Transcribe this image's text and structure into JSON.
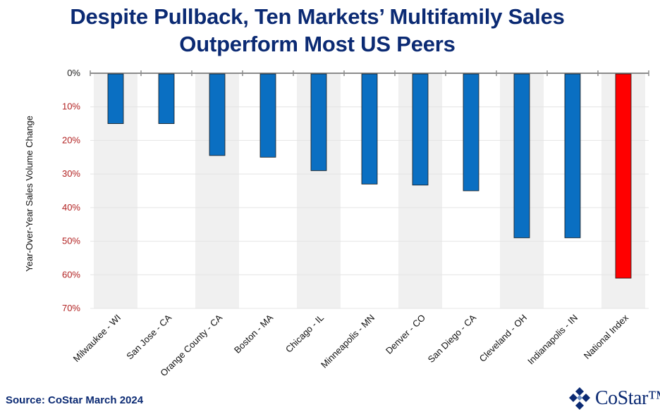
{
  "title": {
    "line1": "Despite Pullback, Ten Markets’ Multifamily Sales",
    "line2": "Outperform Most US Peers"
  },
  "source": "Source: CoStar March 2024",
  "logo": {
    "text": "CoStar™",
    "icon": "costar-star-logo-icon"
  },
  "colors": {
    "bar": "#0a6fc2",
    "highlight": "#ff0000",
    "title": "#0b2a73",
    "tick_label": "#b22222",
    "band": "#f0f0f0"
  },
  "chart_data": {
    "type": "bar",
    "title": "Despite Pullback, Ten Markets’ Multifamily Sales Outperform Most US Peers",
    "ylabel": "Year-Over-Year Sales Volume  Change",
    "xlabel": "",
    "ylim": [
      0,
      70
    ],
    "y_inverted": true,
    "yticks": [
      0,
      10,
      20,
      30,
      40,
      50,
      60,
      70
    ],
    "ytick_labels": [
      "0%",
      "10%",
      "20%",
      "30%",
      "40%",
      "50%",
      "60%",
      "70%"
    ],
    "categories": [
      "Milwaukee - WI",
      "San Jose - CA",
      "Orange County - CA",
      "Boston - MA",
      "Chicago - IL",
      "Minneapolis - MN",
      "Denver - CO",
      "San Diego - CA",
      "Cleveland - OH",
      "Indianapolis - IN",
      "National Index"
    ],
    "values": [
      15,
      15,
      24.5,
      25,
      29,
      33,
      33.3,
      35,
      49,
      49,
      61
    ],
    "highlight_index": 10,
    "alternating_bands": true,
    "grid": true
  }
}
